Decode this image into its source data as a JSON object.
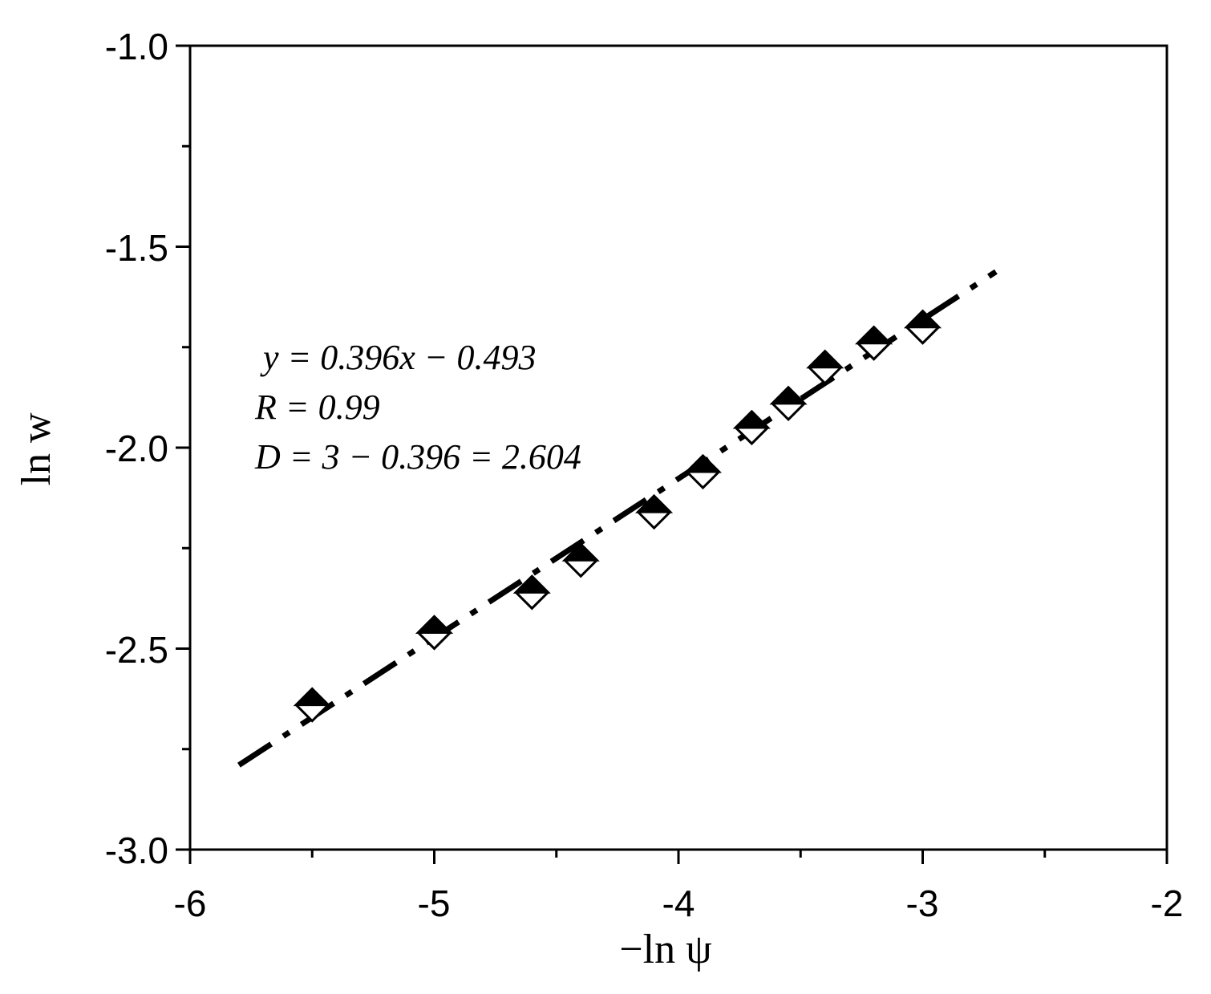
{
  "chart_data": {
    "type": "scatter",
    "xlabel": "−ln ψ",
    "ylabel": "ln w",
    "xlim": [
      -6,
      -2
    ],
    "ylim": [
      -3.0,
      -1.0
    ],
    "x_ticks": [
      "-6",
      "-5",
      "-4",
      "-3",
      "-2"
    ],
    "y_ticks": [
      "-1.0",
      "-1.5",
      "-2.0",
      "-2.5",
      "-3.0"
    ],
    "grid": false,
    "series": [
      {
        "marker": "half-filled-diamond",
        "x": [
          -5.5,
          -5.0,
          -4.6,
          -4.4,
          -4.1,
          -3.9,
          -3.7,
          -3.55,
          -3.4,
          -3.2,
          -3.0
        ],
        "y": [
          -2.64,
          -2.46,
          -2.36,
          -2.28,
          -2.16,
          -2.06,
          -1.95,
          -1.89,
          -1.8,
          -1.74,
          -1.7
        ]
      }
    ],
    "fit_line": {
      "style": "dash-dot",
      "slope": 0.396,
      "intercept": -0.493,
      "x_range": [
        -5.8,
        -2.7
      ]
    },
    "annotations": [
      "y = 0.396x − 0.493",
      "R = 0.99",
      "D = 3 − 0.396 = 2.604"
    ]
  }
}
